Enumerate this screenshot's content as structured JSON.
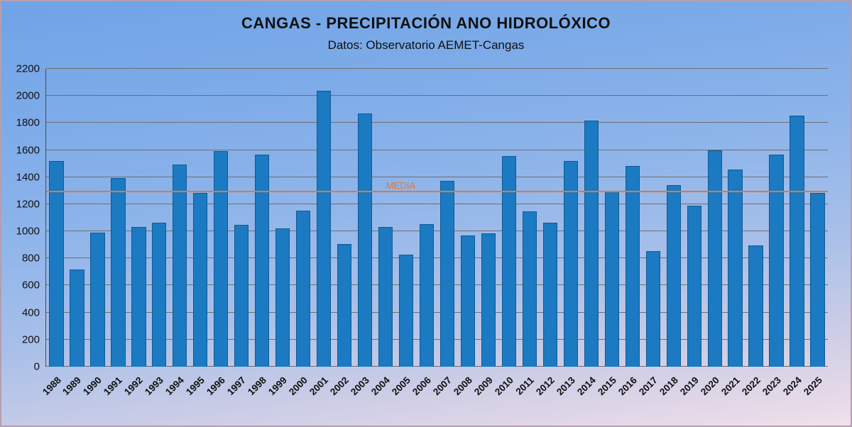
{
  "title": "CANGAS - PRECIPITACIÓN ANO HIDROLÓXICO",
  "subtitle": "Datos: Observatorio AEMET-Cangas",
  "media": {
    "label": "MEDIA",
    "value": 1290
  },
  "colors": {
    "bar": "#1b7ac1",
    "bar_border": "#0f5a94",
    "media_line": "#e8762d",
    "grid": "#6f6f6f"
  },
  "chart_data": {
    "type": "bar",
    "title": "CANGAS - PRECIPITACIÓN ANO HIDROLÓXICO",
    "subtitle": "Datos: Observatorio AEMET-Cangas",
    "categories": [
      "1988",
      "1989",
      "1990",
      "1991",
      "1992",
      "1993",
      "1994",
      "1995",
      "1996",
      "1997",
      "1998",
      "1999",
      "2000",
      "2001",
      "2002",
      "2003",
      "2004",
      "2005",
      "2006",
      "2007",
      "2008",
      "2009",
      "2010",
      "2011",
      "2012",
      "2013",
      "2014",
      "2015",
      "2016",
      "2017",
      "2018",
      "2019",
      "2020",
      "2021",
      "2022",
      "2023",
      "2024",
      "2025"
    ],
    "values": [
      1520,
      720,
      990,
      1395,
      1030,
      1065,
      1495,
      1285,
      1590,
      1050,
      1565,
      1020,
      1150,
      2040,
      905,
      1870,
      1030,
      830,
      1055,
      1370,
      970,
      985,
      1555,
      1145,
      1065,
      1520,
      1820,
      1295,
      1485,
      855,
      1340,
      1190,
      1600,
      1455,
      895,
      1565,
      1855,
      1285
    ],
    "xlabel": "",
    "ylabel": "",
    "ylim": [
      0,
      2200
    ],
    "ytick_step": 200,
    "grid": true,
    "legend_position": "none",
    "annotations": [
      {
        "label": "MEDIA",
        "value": 1290,
        "type": "horizontal-line"
      }
    ]
  }
}
